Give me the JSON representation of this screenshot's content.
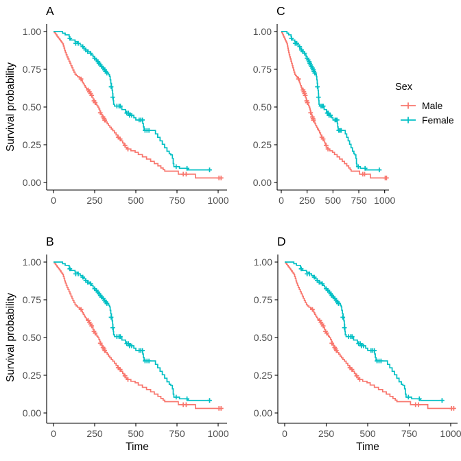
{
  "figure": {
    "background": "#ffffff",
    "axis_color": "#000000",
    "tick_text_color": "#4d4d4d"
  },
  "panels": [
    {
      "tag": "A",
      "y_axis_title_shown": true,
      "x_axis_title_shown": false
    },
    {
      "tag": "C",
      "y_axis_title_shown": false,
      "x_axis_title_shown": false
    },
    {
      "tag": "B",
      "y_axis_title_shown": true,
      "x_axis_title_shown": true
    },
    {
      "tag": "D",
      "y_axis_title_shown": false,
      "x_axis_title_shown": true
    }
  ],
  "axes": {
    "y_title": "Survival probability",
    "x_title": "Time",
    "x_ticks": [
      "0",
      "250",
      "500",
      "750",
      "1000"
    ],
    "x_tick_values": [
      0,
      250,
      500,
      750,
      1000
    ],
    "y_ticks": [
      "0.00",
      "0.25",
      "0.50",
      "0.75",
      "1.00"
    ],
    "y_tick_values": [
      0,
      0.25,
      0.5,
      0.75,
      1
    ]
  },
  "legend": {
    "title": "Sex",
    "entries": [
      {
        "label": "Male",
        "color": "#F8766D"
      },
      {
        "label": "Female",
        "color": "#00BFC4"
      }
    ]
  },
  "chart_data": {
    "type": "line",
    "subtype": "kaplan-meier-step-curves",
    "note": "All four panels (A, B, C, D) display the same two survival curves; panel C is horizontally compressed to make room for the legend.",
    "x_range": [
      0,
      1022
    ],
    "y_range": [
      0,
      1
    ],
    "grid": false,
    "legend_position": "right",
    "series": [
      {
        "name": "Male",
        "color": "#F8766D",
        "points": [
          [
            0,
            1.0
          ],
          [
            5,
            0.993
          ],
          [
            11,
            0.985
          ],
          [
            16,
            0.978
          ],
          [
            21,
            0.97
          ],
          [
            26,
            0.963
          ],
          [
            31,
            0.956
          ],
          [
            36,
            0.948
          ],
          [
            41,
            0.941
          ],
          [
            46,
            0.933
          ],
          [
            51,
            0.926
          ],
          [
            56,
            0.918
          ],
          [
            60,
            0.904
          ],
          [
            64,
            0.89
          ],
          [
            68,
            0.875
          ],
          [
            72,
            0.861
          ],
          [
            77,
            0.846
          ],
          [
            82,
            0.832
          ],
          [
            88,
            0.818
          ],
          [
            94,
            0.803
          ],
          [
            100,
            0.789
          ],
          [
            106,
            0.774
          ],
          [
            112,
            0.76
          ],
          [
            118,
            0.745
          ],
          [
            124,
            0.731
          ],
          [
            131,
            0.717
          ],
          [
            138,
            0.709
          ],
          [
            146,
            0.701
          ],
          [
            156,
            0.694
          ],
          [
            167,
            0.686
          ],
          [
            171,
            0.675
          ],
          [
            176,
            0.664
          ],
          [
            181,
            0.653
          ],
          [
            187,
            0.642
          ],
          [
            193,
            0.631
          ],
          [
            199,
            0.622
          ],
          [
            205,
            0.617
          ],
          [
            210,
            0.613
          ],
          [
            216,
            0.601
          ],
          [
            222,
            0.589
          ],
          [
            228,
            0.577
          ],
          [
            234,
            0.565
          ],
          [
            240,
            0.553
          ],
          [
            246,
            0.541
          ],
          [
            252,
            0.529
          ],
          [
            258,
            0.517
          ],
          [
            264,
            0.508
          ],
          [
            270,
            0.499
          ],
          [
            276,
            0.487
          ],
          [
            281,
            0.475
          ],
          [
            286,
            0.462
          ],
          [
            291,
            0.45
          ],
          [
            296,
            0.442
          ],
          [
            301,
            0.434
          ],
          [
            306,
            0.424
          ],
          [
            310,
            0.413
          ],
          [
            318,
            0.401
          ],
          [
            326,
            0.389
          ],
          [
            334,
            0.377
          ],
          [
            342,
            0.366
          ],
          [
            351,
            0.354
          ],
          [
            360,
            0.343
          ],
          [
            370,
            0.329
          ],
          [
            380,
            0.315
          ],
          [
            390,
            0.3
          ],
          [
            400,
            0.288
          ],
          [
            410,
            0.276
          ],
          [
            420,
            0.262
          ],
          [
            428,
            0.246
          ],
          [
            436,
            0.233
          ],
          [
            445,
            0.222
          ],
          [
            470,
            0.21
          ],
          [
            496,
            0.2
          ],
          [
            515,
            0.185
          ],
          [
            540,
            0.17
          ],
          [
            565,
            0.155
          ],
          [
            590,
            0.14
          ],
          [
            612,
            0.125
          ],
          [
            634,
            0.11
          ],
          [
            652,
            0.096
          ],
          [
            666,
            0.085
          ],
          [
            676,
            0.075
          ],
          [
            758,
            0.055
          ],
          [
            862,
            0.03
          ],
          [
            1022,
            0.03
          ]
        ],
        "censor_marks": [
          [
            167,
            0.686
          ],
          [
            211,
            0.613
          ],
          [
            218,
            0.601
          ],
          [
            225,
            0.589
          ],
          [
            232,
            0.577
          ],
          [
            246,
            0.541
          ],
          [
            253,
            0.529
          ],
          [
            284,
            0.462
          ],
          [
            301,
            0.434
          ],
          [
            307,
            0.424
          ],
          [
            311,
            0.413
          ],
          [
            393,
            0.3
          ],
          [
            405,
            0.288
          ],
          [
            434,
            0.246
          ],
          [
            452,
            0.222
          ],
          [
            788,
            0.055
          ],
          [
            806,
            0.055
          ],
          [
            1005,
            0.03
          ],
          [
            1018,
            0.03
          ]
        ]
      },
      {
        "name": "Female",
        "color": "#00BFC4",
        "points": [
          [
            0,
            1.0
          ],
          [
            55,
            0.989
          ],
          [
            71,
            0.978
          ],
          [
            95,
            0.966
          ],
          [
            99,
            0.955
          ],
          [
            105,
            0.944
          ],
          [
            131,
            0.933
          ],
          [
            145,
            0.922
          ],
          [
            162,
            0.911
          ],
          [
            175,
            0.9
          ],
          [
            182,
            0.889
          ],
          [
            196,
            0.878
          ],
          [
            210,
            0.867
          ],
          [
            222,
            0.856
          ],
          [
            230,
            0.845
          ],
          [
            240,
            0.834
          ],
          [
            250,
            0.823
          ],
          [
            260,
            0.812
          ],
          [
            268,
            0.801
          ],
          [
            278,
            0.79
          ],
          [
            286,
            0.779
          ],
          [
            293,
            0.768
          ],
          [
            300,
            0.758
          ],
          [
            308,
            0.747
          ],
          [
            320,
            0.736
          ],
          [
            328,
            0.725
          ],
          [
            335,
            0.714
          ],
          [
            340,
            0.703
          ],
          [
            344,
            0.68
          ],
          [
            348,
            0.657
          ],
          [
            352,
            0.634
          ],
          [
            356,
            0.611
          ],
          [
            359,
            0.588
          ],
          [
            361,
            0.565
          ],
          [
            363,
            0.542
          ],
          [
            365,
            0.518
          ],
          [
            370,
            0.506
          ],
          [
            415,
            0.483
          ],
          [
            438,
            0.46
          ],
          [
            467,
            0.445
          ],
          [
            488,
            0.429
          ],
          [
            500,
            0.414
          ],
          [
            542,
            0.391
          ],
          [
            546,
            0.368
          ],
          [
            550,
            0.345
          ],
          [
            619,
            0.322
          ],
          [
            633,
            0.299
          ],
          [
            647,
            0.276
          ],
          [
            661,
            0.253
          ],
          [
            675,
            0.23
          ],
          [
            689,
            0.207
          ],
          [
            703,
            0.19
          ],
          [
            712,
            0.183
          ],
          [
            722,
            0.16
          ],
          [
            727,
            0.125
          ],
          [
            731,
            0.105
          ],
          [
            765,
            0.094
          ],
          [
            818,
            0.083
          ],
          [
            958,
            0.083
          ]
        ],
        "censor_marks": [
          [
            99,
            0.955
          ],
          [
            135,
            0.922
          ],
          [
            150,
            0.922
          ],
          [
            178,
            0.9
          ],
          [
            196,
            0.878
          ],
          [
            208,
            0.867
          ],
          [
            226,
            0.856
          ],
          [
            250,
            0.823
          ],
          [
            260,
            0.812
          ],
          [
            270,
            0.801
          ],
          [
            276,
            0.79
          ],
          [
            284,
            0.779
          ],
          [
            292,
            0.768
          ],
          [
            302,
            0.758
          ],
          [
            310,
            0.747
          ],
          [
            316,
            0.736
          ],
          [
            324,
            0.725
          ],
          [
            350,
            0.634
          ],
          [
            360,
            0.565
          ],
          [
            385,
            0.506
          ],
          [
            398,
            0.506
          ],
          [
            406,
            0.506
          ],
          [
            445,
            0.46
          ],
          [
            455,
            0.46
          ],
          [
            462,
            0.445
          ],
          [
            475,
            0.445
          ],
          [
            520,
            0.414
          ],
          [
            530,
            0.414
          ],
          [
            540,
            0.414
          ],
          [
            556,
            0.345
          ],
          [
            568,
            0.345
          ],
          [
            580,
            0.345
          ],
          [
            745,
            0.105
          ],
          [
            811,
            0.094
          ],
          [
            948,
            0.083
          ]
        ]
      }
    ]
  }
}
